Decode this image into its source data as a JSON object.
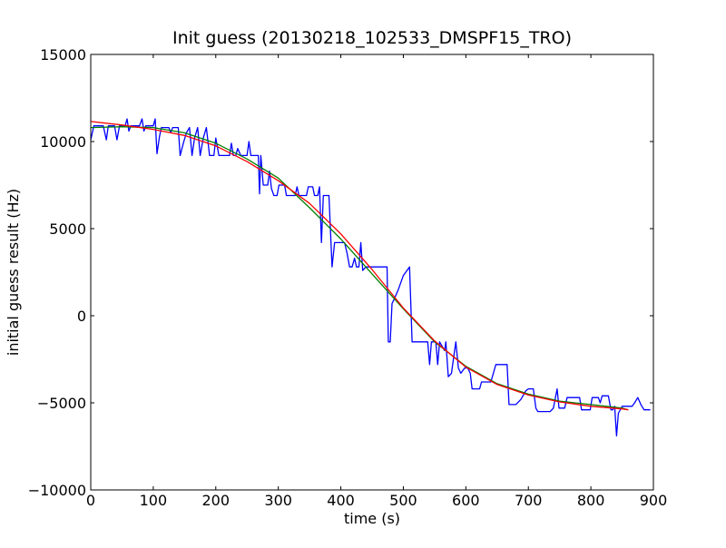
{
  "chart_data": {
    "type": "line",
    "title": "Init guess (20130218_102533_DMSPF15_TRO)",
    "xlabel": "time (s)",
    "ylabel": "initial guess result (Hz)",
    "xlim": [
      0,
      900
    ],
    "ylim": [
      -10000,
      15000
    ],
    "xticks": [
      0,
      100,
      200,
      300,
      400,
      500,
      600,
      700,
      800,
      900
    ],
    "yticks": [
      -10000,
      -5000,
      0,
      5000,
      10000,
      15000
    ],
    "xtick_labels": [
      "0",
      "100",
      "200",
      "300",
      "400",
      "500",
      "600",
      "700",
      "800",
      "900"
    ],
    "ytick_labels": [
      "−10000",
      "−5000",
      "0",
      "5000",
      "10000",
      "15000"
    ],
    "grid": false,
    "legend": "none",
    "series": [
      {
        "color": "#0000ff",
        "points": [
          [
            0,
            10100
          ],
          [
            5,
            10900
          ],
          [
            20,
            10900
          ],
          [
            25,
            10100
          ],
          [
            28,
            10900
          ],
          [
            38,
            10900
          ],
          [
            42,
            10100
          ],
          [
            46,
            10900
          ],
          [
            55,
            10900
          ],
          [
            58,
            11300
          ],
          [
            61,
            10600
          ],
          [
            64,
            10900
          ],
          [
            78,
            10900
          ],
          [
            82,
            11300
          ],
          [
            85,
            10600
          ],
          [
            88,
            10900
          ],
          [
            100,
            10900
          ],
          [
            103,
            11300
          ],
          [
            106,
            9300
          ],
          [
            110,
            10300
          ],
          [
            113,
            10800
          ],
          [
            125,
            10800
          ],
          [
            128,
            10500
          ],
          [
            131,
            10800
          ],
          [
            140,
            10800
          ],
          [
            143,
            9200
          ],
          [
            148,
            9900
          ],
          [
            153,
            10500
          ],
          [
            158,
            10800
          ],
          [
            162,
            9200
          ],
          [
            166,
            10200
          ],
          [
            171,
            10800
          ],
          [
            175,
            9200
          ],
          [
            180,
            10200
          ],
          [
            185,
            10800
          ],
          [
            190,
            9200
          ],
          [
            197,
            9200
          ],
          [
            200,
            10200
          ],
          [
            205,
            9200
          ],
          [
            222,
            9200
          ],
          [
            225,
            9900
          ],
          [
            228,
            9200
          ],
          [
            232,
            9200
          ],
          [
            235,
            9600
          ],
          [
            240,
            9200
          ],
          [
            250,
            9200
          ],
          [
            253,
            10000
          ],
          [
            256,
            9200
          ],
          [
            268,
            9200
          ],
          [
            270,
            7000
          ],
          [
            272,
            9200
          ],
          [
            276,
            7500
          ],
          [
            283,
            7500
          ],
          [
            286,
            8300
          ],
          [
            289,
            7300
          ],
          [
            293,
            6900
          ],
          [
            298,
            6900
          ],
          [
            301,
            7500
          ],
          [
            310,
            7500
          ],
          [
            313,
            6900
          ],
          [
            327,
            6900
          ],
          [
            330,
            7400
          ],
          [
            333,
            6900
          ],
          [
            345,
            6900
          ],
          [
            348,
            7400
          ],
          [
            355,
            7400
          ],
          [
            358,
            6900
          ],
          [
            363,
            6900
          ],
          [
            366,
            7400
          ],
          [
            369,
            4200
          ],
          [
            372,
            6900
          ],
          [
            381,
            6900
          ],
          [
            383,
            5300
          ],
          [
            386,
            2800
          ],
          [
            390,
            4200
          ],
          [
            406,
            4200
          ],
          [
            410,
            3600
          ],
          [
            414,
            2800
          ],
          [
            418,
            2800
          ],
          [
            422,
            3300
          ],
          [
            425,
            2800
          ],
          [
            429,
            2800
          ],
          [
            432,
            4200
          ],
          [
            435,
            2600
          ],
          [
            440,
            2800
          ],
          [
            474,
            2800
          ],
          [
            476,
            -1500
          ],
          [
            479,
            -1500
          ],
          [
            482,
            700
          ],
          [
            486,
            1000
          ],
          [
            492,
            1500
          ],
          [
            500,
            2300
          ],
          [
            510,
            2800
          ],
          [
            514,
            -1500
          ],
          [
            539,
            -1500
          ],
          [
            542,
            -2800
          ],
          [
            545,
            -1500
          ],
          [
            552,
            -1500
          ],
          [
            555,
            -2800
          ],
          [
            558,
            -1500
          ],
          [
            566,
            -2000
          ],
          [
            568,
            -1500
          ],
          [
            572,
            -3500
          ],
          [
            577,
            -3300
          ],
          [
            580,
            -2500
          ],
          [
            584,
            -1500
          ],
          [
            588,
            -3000
          ],
          [
            592,
            -3300
          ],
          [
            598,
            -3000
          ],
          [
            603,
            -3000
          ],
          [
            607,
            -3300
          ],
          [
            610,
            -4200
          ],
          [
            622,
            -4200
          ],
          [
            625,
            -3800
          ],
          [
            640,
            -3800
          ],
          [
            648,
            -2800
          ],
          [
            666,
            -2800
          ],
          [
            669,
            -5100
          ],
          [
            680,
            -5100
          ],
          [
            688,
            -4800
          ],
          [
            696,
            -4300
          ],
          [
            700,
            -4200
          ],
          [
            708,
            -4200
          ],
          [
            712,
            -5300
          ],
          [
            715,
            -5500
          ],
          [
            735,
            -5500
          ],
          [
            740,
            -5300
          ],
          [
            746,
            -4200
          ],
          [
            749,
            -5300
          ],
          [
            758,
            -5300
          ],
          [
            762,
            -4700
          ],
          [
            782,
            -4700
          ],
          [
            785,
            -5400
          ],
          [
            799,
            -5400
          ],
          [
            802,
            -4700
          ],
          [
            812,
            -4700
          ],
          [
            815,
            -5000
          ],
          [
            818,
            -4600
          ],
          [
            828,
            -4600
          ],
          [
            832,
            -5400
          ],
          [
            835,
            -5400
          ],
          [
            838,
            -5200
          ],
          [
            841,
            -6900
          ],
          [
            844,
            -5600
          ],
          [
            850,
            -5200
          ],
          [
            866,
            -5200
          ],
          [
            870,
            -5000
          ],
          [
            875,
            -4700
          ],
          [
            880,
            -5100
          ],
          [
            885,
            -5400
          ],
          [
            895,
            -5400
          ]
        ]
      },
      {
        "color": "#008000",
        "points": [
          [
            0,
            10800
          ],
          [
            50,
            10850
          ],
          [
            100,
            10800
          ],
          [
            150,
            10500
          ],
          [
            200,
            9900
          ],
          [
            250,
            9000
          ],
          [
            300,
            7900
          ],
          [
            350,
            6200
          ],
          [
            400,
            4400
          ],
          [
            450,
            2400
          ],
          [
            500,
            400
          ],
          [
            550,
            -1500
          ],
          [
            600,
            -2900
          ],
          [
            650,
            -3900
          ],
          [
            700,
            -4500
          ],
          [
            750,
            -4900
          ],
          [
            800,
            -5100
          ],
          [
            850,
            -5300
          ],
          [
            860,
            -5400
          ]
        ]
      },
      {
        "color": "#ff0000",
        "points": [
          [
            0,
            11150
          ],
          [
            50,
            10950
          ],
          [
            100,
            10700
          ],
          [
            150,
            10350
          ],
          [
            200,
            9750
          ],
          [
            250,
            8850
          ],
          [
            300,
            7750
          ],
          [
            350,
            6450
          ],
          [
            400,
            4700
          ],
          [
            450,
            2650
          ],
          [
            500,
            450
          ],
          [
            550,
            -1450
          ],
          [
            600,
            -2950
          ],
          [
            650,
            -3950
          ],
          [
            700,
            -4550
          ],
          [
            750,
            -4950
          ],
          [
            800,
            -5200
          ],
          [
            850,
            -5350
          ],
          [
            860,
            -5400
          ]
        ]
      }
    ]
  }
}
